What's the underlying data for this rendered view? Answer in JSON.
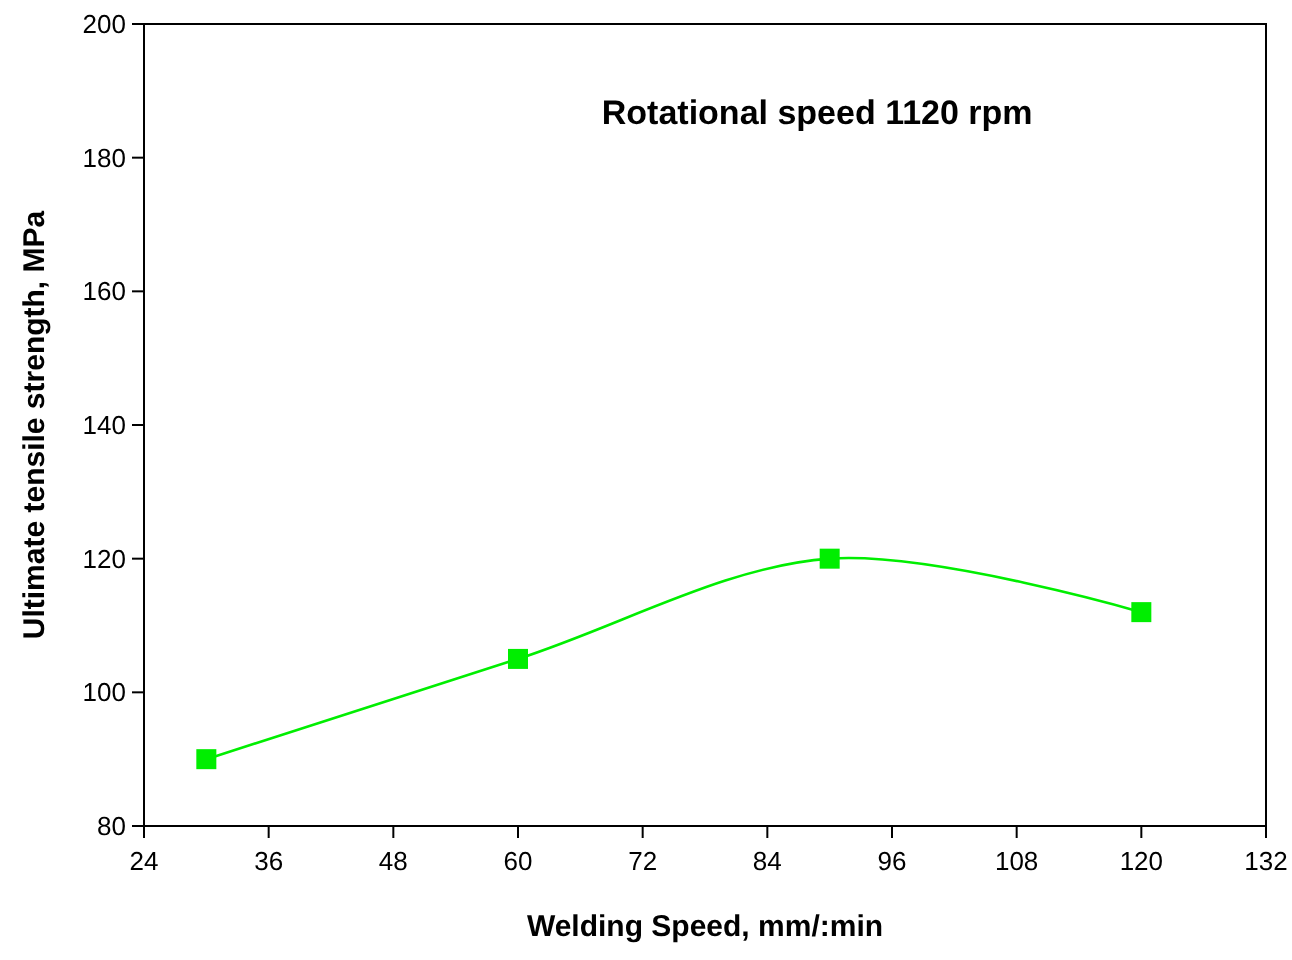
{
  "chart_data": {
    "type": "line",
    "title": "Rotational speed 1120 rpm",
    "xlabel": "Welding Speed, mm/:min",
    "ylabel": "Ultimate tensile strength, MPa",
    "x": [
      30,
      60,
      90,
      120
    ],
    "series": [
      {
        "color": "#00ee00",
        "values": [
          90,
          105,
          120,
          112
        ]
      }
    ],
    "xlim": [
      24,
      132
    ],
    "xticks": [
      24,
      36,
      48,
      60,
      72,
      84,
      96,
      108,
      120,
      132
    ],
    "ylim": [
      80,
      200
    ],
    "yticks": [
      80,
      100,
      120,
      140,
      160,
      180,
      200
    ],
    "grid": false,
    "marker": "square",
    "line_style": "solid"
  }
}
